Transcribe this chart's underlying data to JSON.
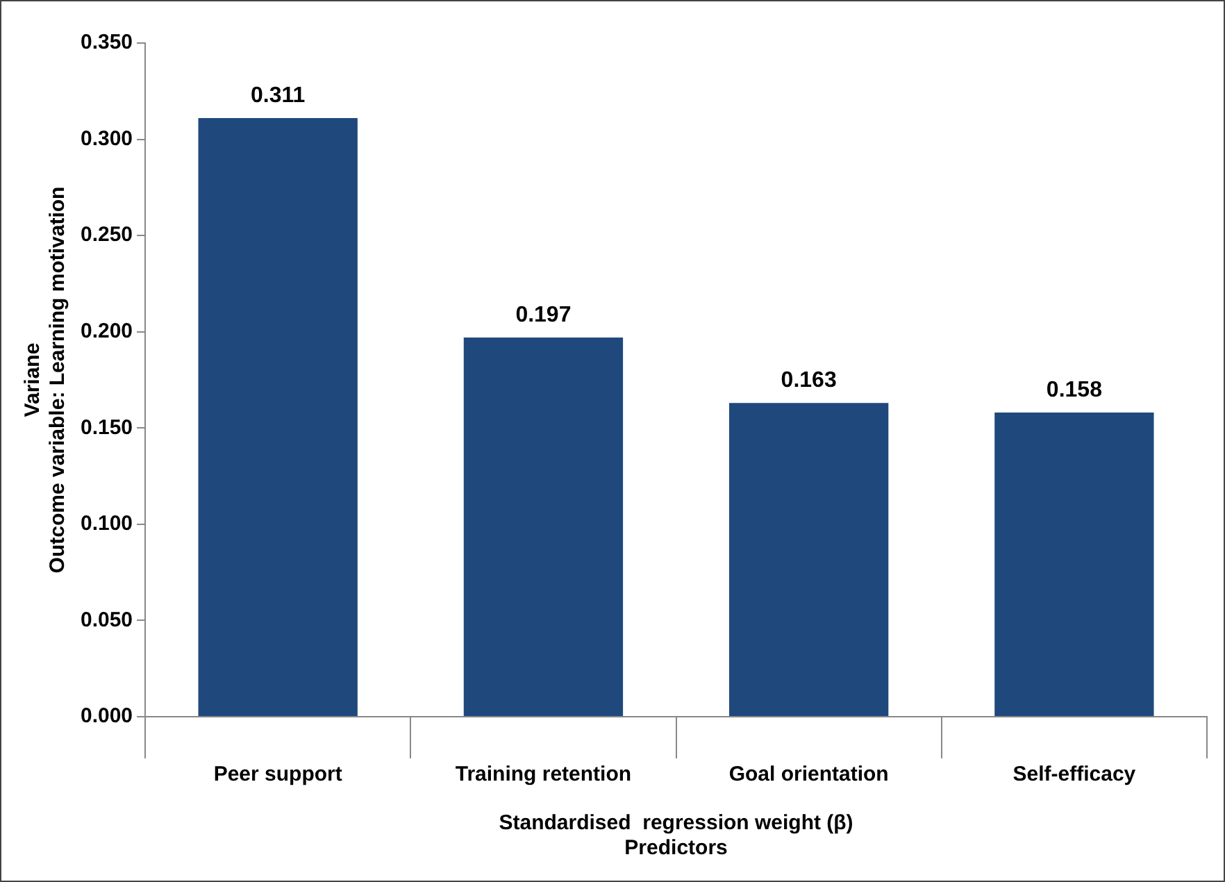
{
  "chart_data": {
    "type": "bar",
    "categories": [
      "Peer support",
      "Training retention",
      "Goal orientation",
      "Self-efficacy"
    ],
    "values": [
      0.311,
      0.197,
      0.163,
      0.158
    ],
    "color": "#1f497d",
    "ylabel": "Variane\nOutcome variable: Learning motivation",
    "xlabel": "Standardised  regression weight (β)\nPredictors",
    "ylim": [
      0,
      0.35
    ],
    "yticks": [
      {
        "value": 0,
        "label": "0.000"
      },
      {
        "value": 0.05,
        "label": "0.050"
      },
      {
        "value": 0.1,
        "label": "0.100"
      },
      {
        "value": 0.15,
        "label": "0.150"
      },
      {
        "value": 0.2,
        "label": "0.200"
      },
      {
        "value": 0.25,
        "label": "0.250"
      },
      {
        "value": 0.3,
        "label": "0.300"
      },
      {
        "value": 0.35,
        "label": "0.350"
      }
    ],
    "data_labels": true,
    "grid": false,
    "legend": false
  }
}
